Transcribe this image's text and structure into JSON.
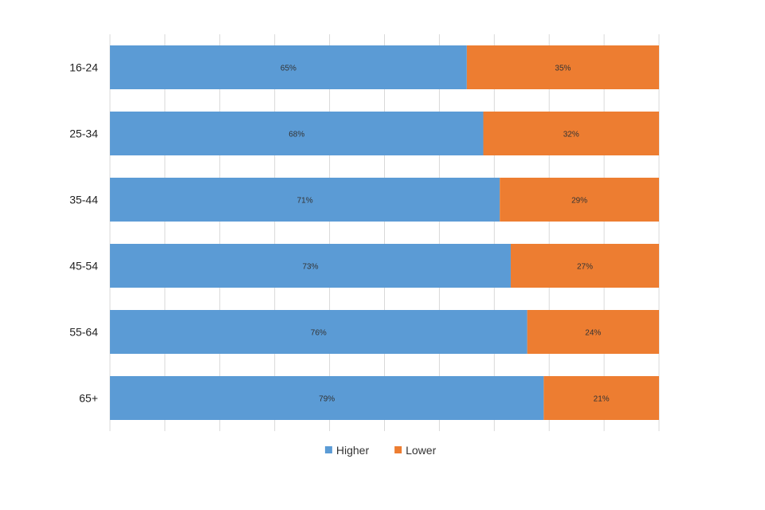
{
  "chart_data": {
    "type": "bar",
    "orientation": "horizontal",
    "stacked": true,
    "categories": [
      "16-24",
      "25-34",
      "35-44",
      "45-54",
      "55-64",
      "65+"
    ],
    "series": [
      {
        "name": "Higher",
        "color": "#5B9BD5",
        "values": [
          65,
          68,
          71,
          73,
          76,
          79
        ],
        "labels": [
          "65%",
          "68%",
          "71%",
          "73%",
          "76%",
          "79%"
        ]
      },
      {
        "name": "Lower",
        "color": "#ED7D31",
        "values": [
          35,
          32,
          29,
          27,
          24,
          21
        ],
        "labels": [
          "35%",
          "32%",
          "29%",
          "27%",
          "24%",
          "21%"
        ]
      }
    ],
    "xlim": [
      0,
      100
    ],
    "grid": true,
    "legend": "bottom",
    "title": "",
    "xlabel": "",
    "ylabel": ""
  }
}
